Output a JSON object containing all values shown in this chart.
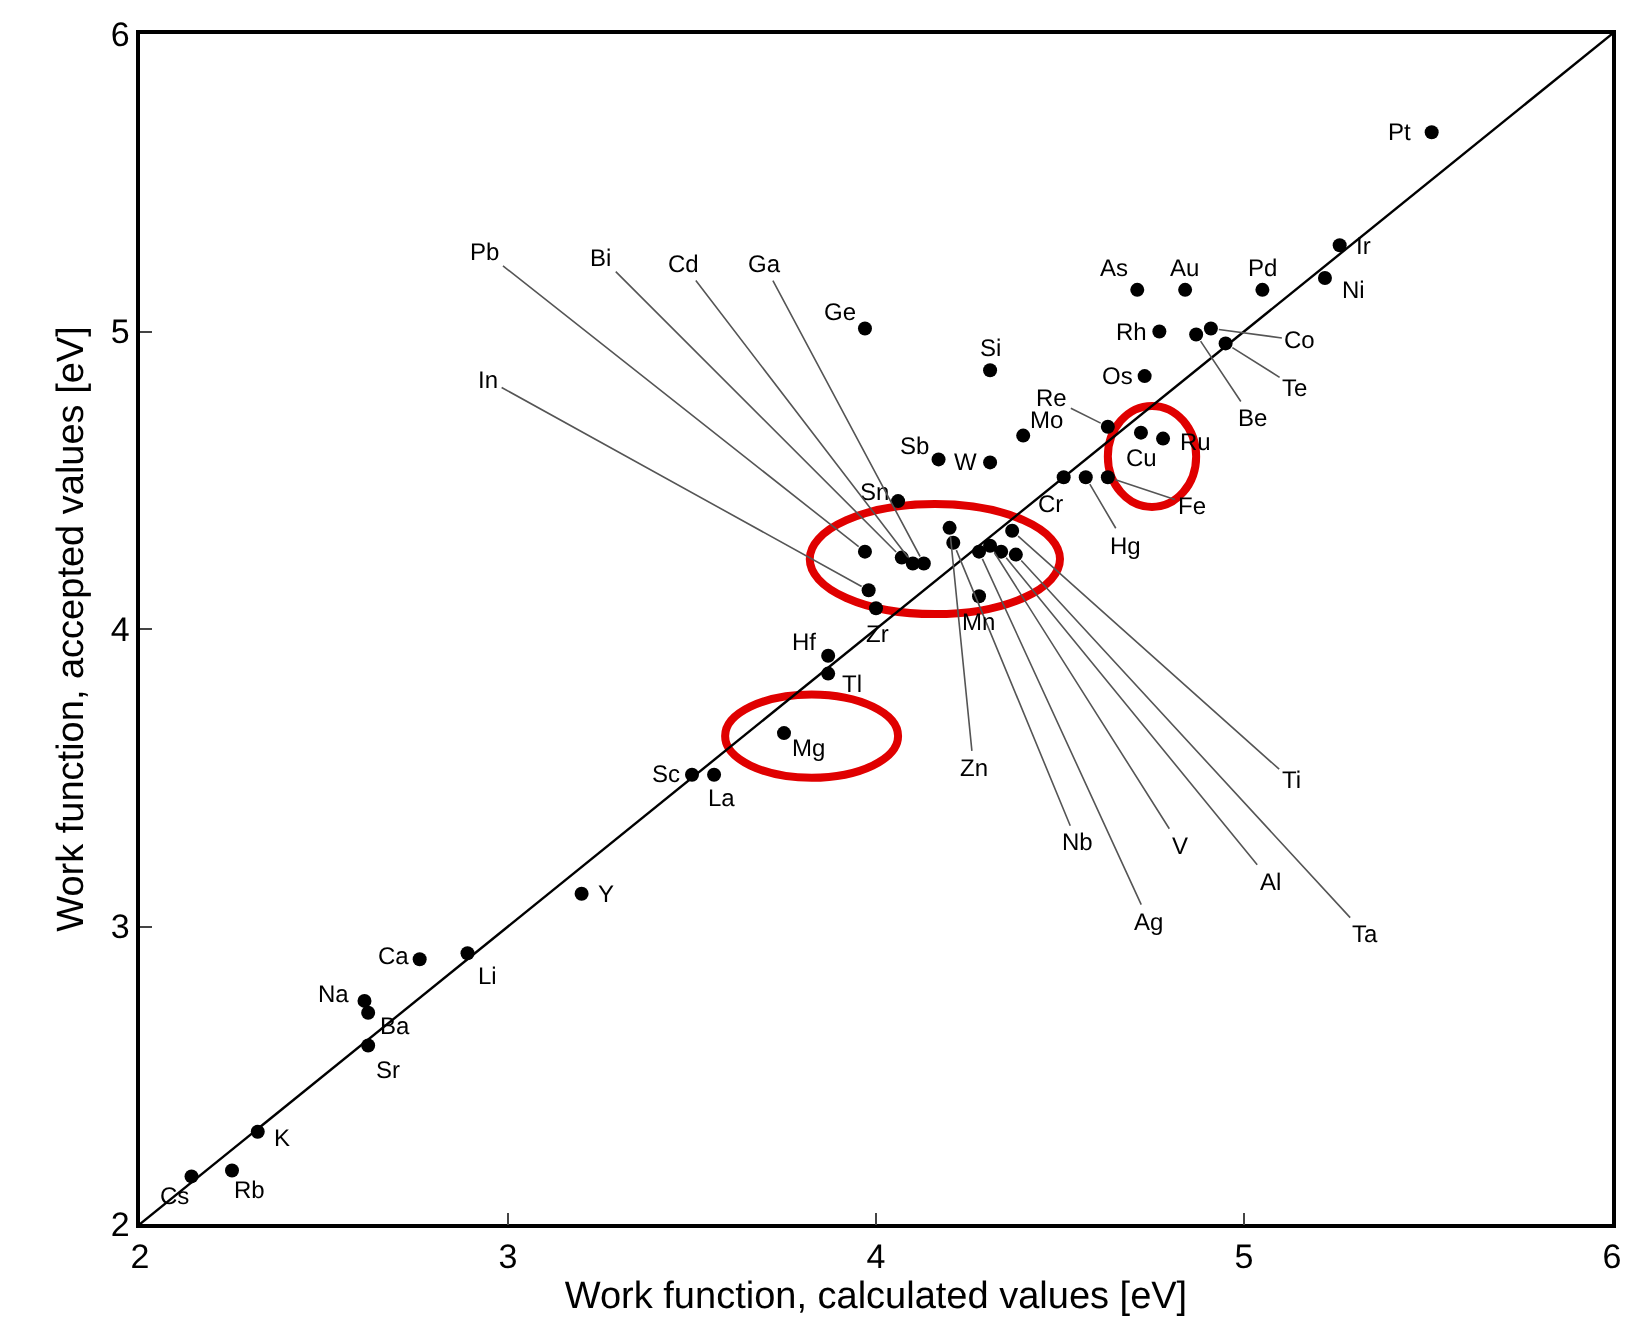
{
  "chart_data": {
    "type": "scatter",
    "xlabel": "Work function, calculated values [eV]",
    "ylabel": "Work function, accepted values [eV]",
    "xlim": [
      2,
      6
    ],
    "ylim": [
      2,
      6
    ],
    "xticks": [
      2,
      3,
      4,
      5,
      6
    ],
    "yticks": [
      2,
      3,
      4,
      5,
      6
    ],
    "marker": "circle",
    "series": [
      {
        "color": "#000000",
        "x": [
          5.51,
          5.26,
          5.22,
          5.05,
          4.84,
          4.71,
          4.77,
          4.91,
          4.95,
          4.87,
          4.73,
          4.31,
          3.97,
          4.63,
          4.78,
          4.72,
          4.4,
          4.31,
          4.17,
          4.06,
          4.63,
          4.51,
          4.57,
          3.97,
          4.07,
          4.1,
          4.13,
          3.98,
          4.2,
          4.21,
          4.37,
          4.31,
          4.34,
          4.28,
          4.38,
          4.0,
          4.28,
          3.87,
          3.87,
          3.75,
          3.5,
          3.56,
          3.2,
          2.76,
          2.89,
          2.61,
          2.62,
          2.62,
          2.32,
          2.14,
          2.25
        ],
        "values": [
          5.67,
          5.29,
          5.18,
          5.14,
          5.14,
          5.14,
          5.0,
          5.01,
          4.96,
          4.99,
          4.85,
          4.87,
          5.01,
          4.68,
          4.64,
          4.66,
          4.65,
          4.56,
          4.57,
          4.43,
          4.51,
          4.51,
          4.51,
          4.26,
          4.24,
          4.22,
          4.22,
          4.13,
          4.34,
          4.29,
          4.33,
          4.28,
          4.26,
          4.26,
          4.25,
          4.07,
          4.11,
          3.91,
          3.85,
          3.65,
          3.51,
          3.51,
          3.11,
          2.89,
          2.91,
          2.75,
          2.71,
          2.6,
          2.31,
          2.16,
          2.18
        ]
      },
      {
        "type": "line",
        "color": "#000000",
        "x": [
          2,
          6
        ],
        "values": [
          2,
          6
        ],
        "line_style": "solid",
        "marker": "none"
      }
    ],
    "annotations": [
      {
        "text": "Pt",
        "x": 5.51,
        "y": 5.67
      },
      {
        "text": "Ir",
        "x": 5.26,
        "y": 5.29
      },
      {
        "text": "Ni",
        "x": 5.22,
        "y": 5.18
      },
      {
        "text": "Pd",
        "x": 5.05,
        "y": 5.14
      },
      {
        "text": "Au",
        "x": 4.84,
        "y": 5.14
      },
      {
        "text": "As",
        "x": 4.71,
        "y": 5.14
      },
      {
        "text": "Rh",
        "x": 4.77,
        "y": 5.0
      },
      {
        "text": "Co",
        "x": 4.91,
        "y": 5.01
      },
      {
        "text": "Te",
        "x": 4.95,
        "y": 4.96
      },
      {
        "text": "Be",
        "x": 4.87,
        "y": 4.99
      },
      {
        "text": "Os",
        "x": 4.73,
        "y": 4.85
      },
      {
        "text": "Si",
        "x": 4.31,
        "y": 4.87
      },
      {
        "text": "Ge",
        "x": 3.97,
        "y": 5.01
      },
      {
        "text": "Re",
        "x": 4.63,
        "y": 4.68
      },
      {
        "text": "Ru",
        "x": 4.78,
        "y": 4.64
      },
      {
        "text": "Cu",
        "x": 4.72,
        "y": 4.66
      },
      {
        "text": "Mo",
        "x": 4.4,
        "y": 4.65
      },
      {
        "text": "W",
        "x": 4.31,
        "y": 4.56
      },
      {
        "text": "Sb",
        "x": 4.17,
        "y": 4.57
      },
      {
        "text": "Sn",
        "x": 4.06,
        "y": 4.43
      },
      {
        "text": "Fe",
        "x": 4.63,
        "y": 4.51
      },
      {
        "text": "Cr",
        "x": 4.51,
        "y": 4.51
      },
      {
        "text": "Hg",
        "x": 4.57,
        "y": 4.51
      },
      {
        "text": "Pb",
        "x": 3.97,
        "y": 4.26
      },
      {
        "text": "Bi",
        "x": 4.07,
        "y": 4.24
      },
      {
        "text": "Cd",
        "x": 4.1,
        "y": 4.22
      },
      {
        "text": "Ga",
        "x": 4.13,
        "y": 4.22
      },
      {
        "text": "In",
        "x": 3.98,
        "y": 4.13
      },
      {
        "text": "Zn",
        "x": 4.2,
        "y": 4.34
      },
      {
        "text": "Nb",
        "x": 4.21,
        "y": 4.29
      },
      {
        "text": "Ti",
        "x": 4.37,
        "y": 4.33
      },
      {
        "text": "V",
        "x": 4.31,
        "y": 4.28
      },
      {
        "text": "Al",
        "x": 4.34,
        "y": 4.26
      },
      {
        "text": "Ag",
        "x": 4.28,
        "y": 4.26
      },
      {
        "text": "Ta",
        "x": 4.38,
        "y": 4.25
      },
      {
        "text": "Zr",
        "x": 4.0,
        "y": 4.07
      },
      {
        "text": "Mn",
        "x": 4.28,
        "y": 4.11
      },
      {
        "text": "Hf",
        "x": 3.87,
        "y": 3.91
      },
      {
        "text": "Tl",
        "x": 3.87,
        "y": 3.85
      },
      {
        "text": "Mg",
        "x": 3.75,
        "y": 3.65
      },
      {
        "text": "Sc",
        "x": 3.5,
        "y": 3.51
      },
      {
        "text": "La",
        "x": 3.56,
        "y": 3.51
      },
      {
        "text": "Y",
        "x": 3.2,
        "y": 3.11
      },
      {
        "text": "Ca",
        "x": 2.76,
        "y": 2.89
      },
      {
        "text": "Li",
        "x": 2.89,
        "y": 2.91
      },
      {
        "text": "Na",
        "x": 2.61,
        "y": 2.75
      },
      {
        "text": "Ba",
        "x": 2.62,
        "y": 2.71
      },
      {
        "text": "Sr",
        "x": 2.62,
        "y": 2.6
      },
      {
        "text": "K",
        "x": 2.32,
        "y": 2.31
      },
      {
        "text": "Cs",
        "x": 2.14,
        "y": 2.16
      },
      {
        "text": "Rb",
        "x": 2.25,
        "y": 2.18
      }
    ]
  }
}
